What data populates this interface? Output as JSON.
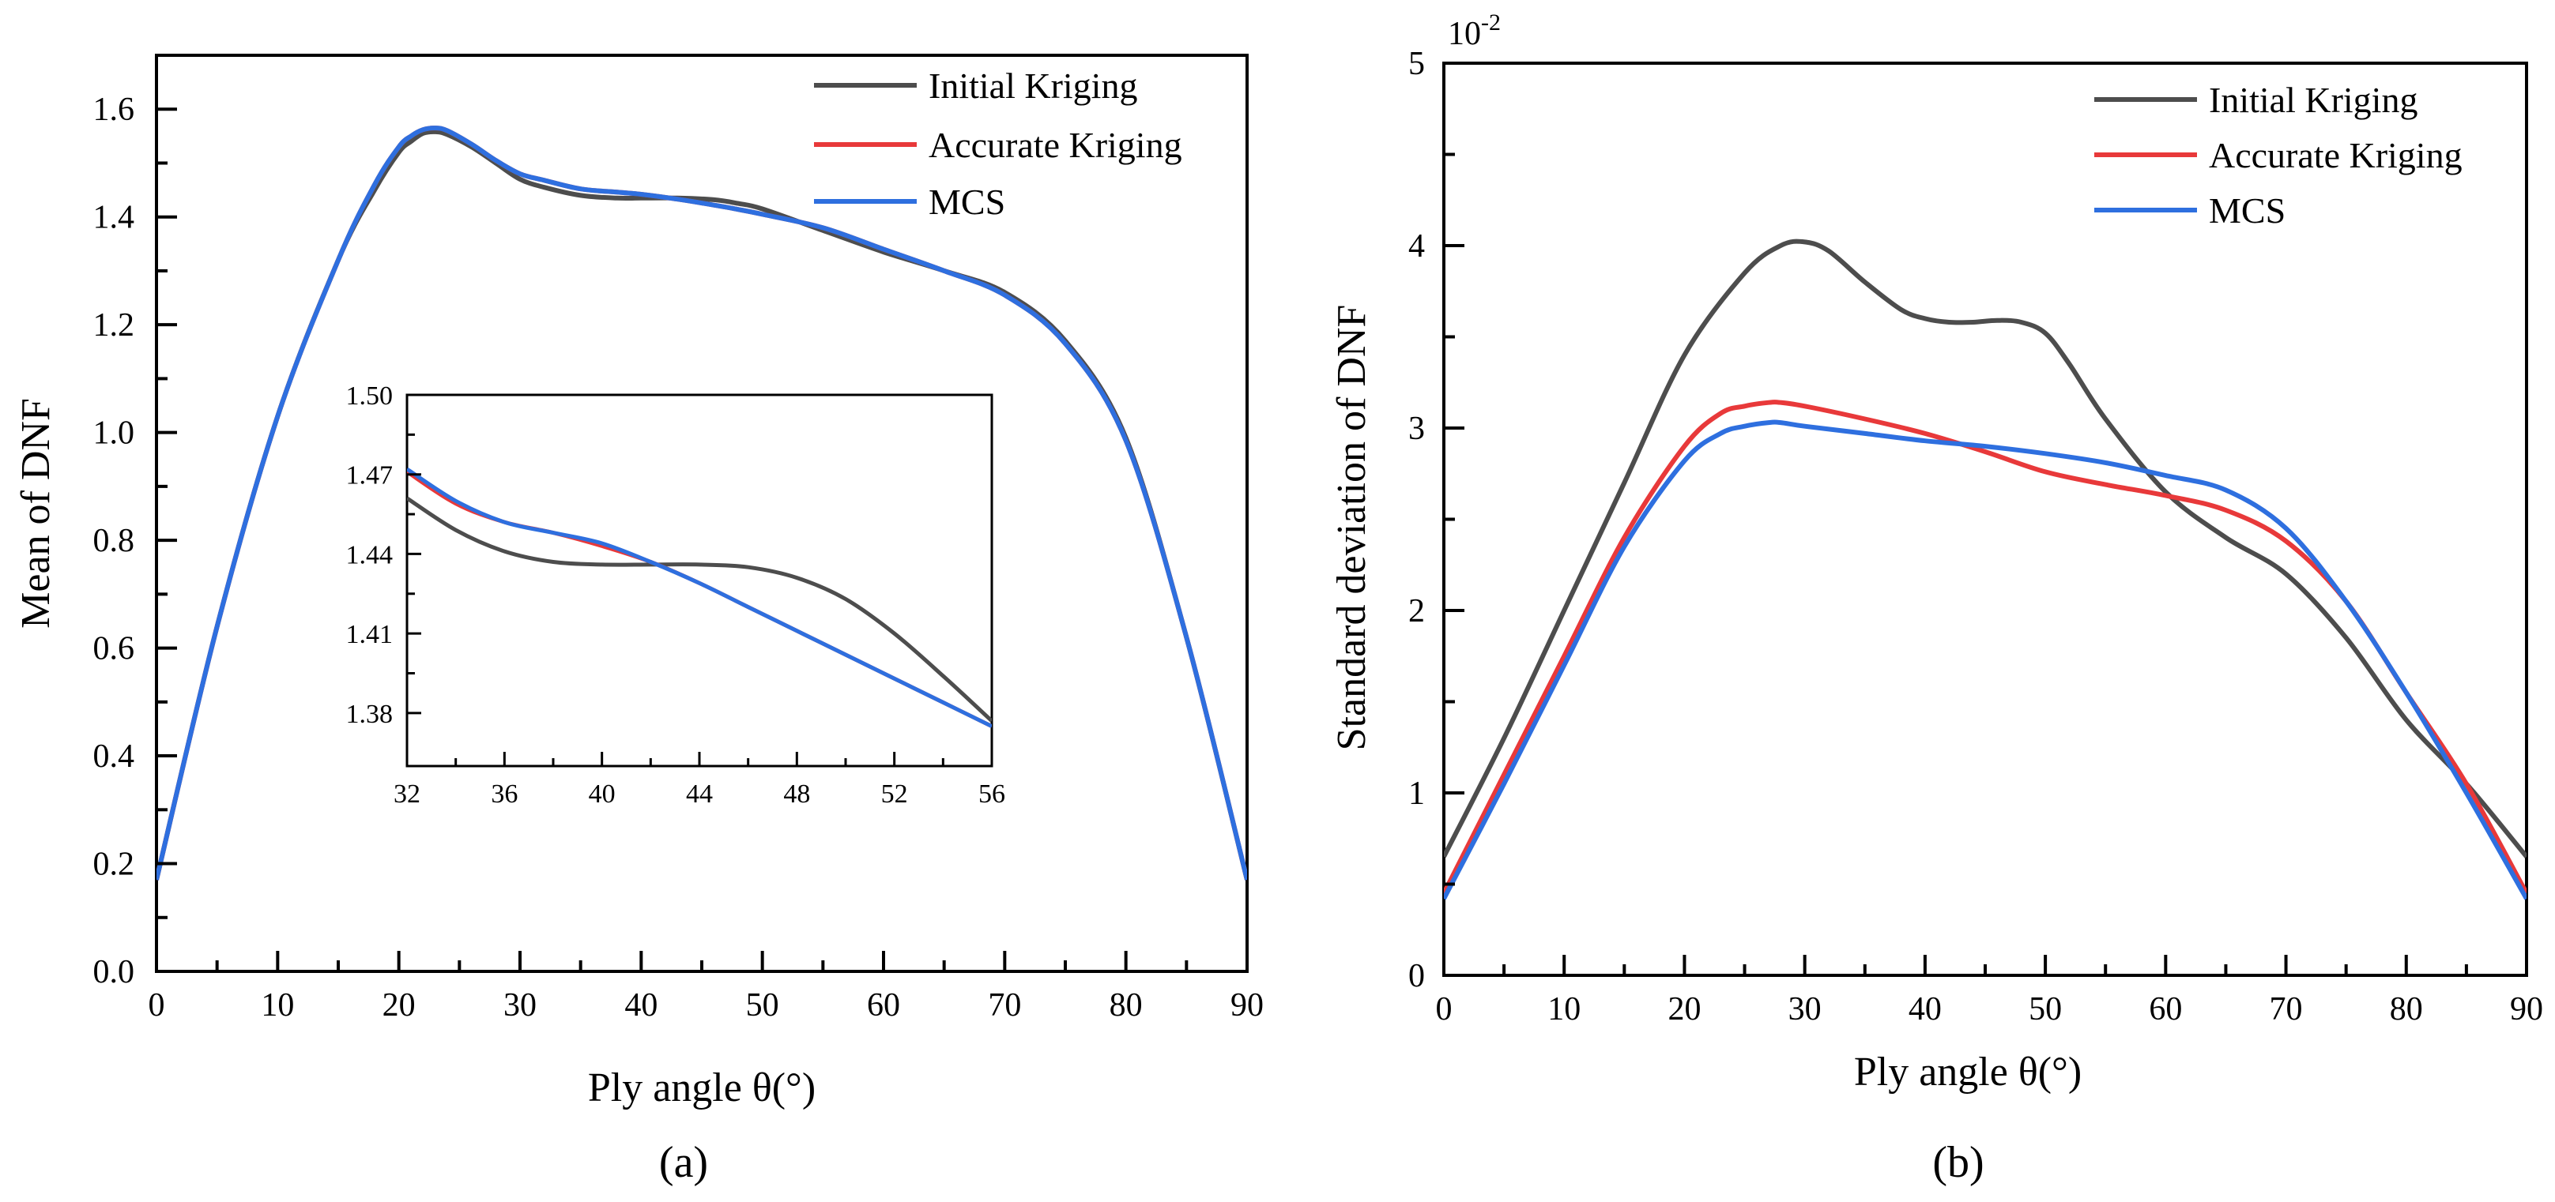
{
  "colors": {
    "initial_kriging": "#4d4d4d",
    "accurate_kriging": "#e8393a",
    "mcs": "#2e6fdf"
  },
  "chart_data": [
    {
      "type": "line",
      "id": "a",
      "caption": "(a)",
      "xlabel": "Ply angle θ(°)",
      "ylabel": "Mean of DNF",
      "xlim": [
        0,
        90
      ],
      "ylim": [
        0.0,
        1.7
      ],
      "xticks": [
        0,
        10,
        20,
        30,
        40,
        50,
        60,
        70,
        80,
        90
      ],
      "yticks": [
        0.0,
        0.2,
        0.4,
        0.6,
        0.8,
        1.0,
        1.2,
        1.4,
        1.6
      ],
      "ytick_labels": [
        "0.0",
        "0.2",
        "0.4",
        "0.6",
        "0.8",
        "1.0",
        "1.2",
        "1.4",
        "1.6"
      ],
      "legend_position": "top-right",
      "series": [
        {
          "name": "Initial Kriging",
          "color_key": "initial_kriging",
          "x": [
            0,
            5,
            10,
            15,
            18,
            20,
            21,
            22,
            23,
            24,
            26,
            28,
            30,
            32,
            35,
            38,
            40,
            43,
            46,
            48,
            50,
            55,
            60,
            65,
            70,
            75,
            80,
            85,
            90
          ],
          "y": [
            0.17,
            0.64,
            1.03,
            1.32,
            1.45,
            1.52,
            1.54,
            1.555,
            1.558,
            1.553,
            1.53,
            1.5,
            1.47,
            1.455,
            1.44,
            1.435,
            1.435,
            1.435,
            1.432,
            1.425,
            1.415,
            1.375,
            1.335,
            1.3,
            1.26,
            1.17,
            0.99,
            0.62,
            0.17
          ]
        },
        {
          "name": "Accurate Kriging",
          "color_key": "accurate_kriging",
          "x": [
            0,
            5,
            10,
            15,
            18,
            20,
            21,
            22,
            23,
            24,
            26,
            28,
            30,
            32,
            35,
            38,
            40,
            43,
            46,
            48,
            50,
            55,
            60,
            65,
            70,
            75,
            80,
            85,
            90
          ],
          "y": [
            0.17,
            0.64,
            1.03,
            1.32,
            1.46,
            1.53,
            1.55,
            1.562,
            1.565,
            1.56,
            1.535,
            1.505,
            1.48,
            1.468,
            1.452,
            1.446,
            1.442,
            1.433,
            1.422,
            1.414,
            1.405,
            1.38,
            1.34,
            1.3,
            1.255,
            1.165,
            0.985,
            0.62,
            0.17
          ]
        },
        {
          "name": "MCS",
          "color_key": "mcs",
          "x": [
            0,
            5,
            10,
            15,
            18,
            20,
            21,
            22,
            23,
            24,
            26,
            28,
            30,
            32,
            35,
            38,
            40,
            43,
            46,
            48,
            50,
            55,
            60,
            65,
            70,
            75,
            80,
            85,
            90
          ],
          "y": [
            0.17,
            0.64,
            1.03,
            1.32,
            1.46,
            1.53,
            1.55,
            1.562,
            1.565,
            1.56,
            1.535,
            1.505,
            1.48,
            1.468,
            1.452,
            1.446,
            1.442,
            1.433,
            1.422,
            1.414,
            1.405,
            1.38,
            1.34,
            1.3,
            1.255,
            1.165,
            0.985,
            0.62,
            0.17
          ]
        }
      ],
      "inset": {
        "xlim": [
          32,
          56
        ],
        "ylim": [
          1.36,
          1.5
        ],
        "xticks": [
          32,
          36,
          40,
          44,
          48,
          52,
          56
        ],
        "yticks": [
          1.38,
          1.41,
          1.44,
          1.47,
          1.5
        ],
        "ytick_labels": [
          "1.38",
          "1.41",
          "1.44",
          "1.47",
          "1.50"
        ],
        "series": [
          {
            "name": "Initial Kriging",
            "color_key": "initial_kriging",
            "x": [
              32,
              34,
              36,
              38,
              40,
              42,
              44,
              46,
              48,
              50,
              52,
              54,
              56
            ],
            "y": [
              1.461,
              1.449,
              1.441,
              1.437,
              1.436,
              1.436,
              1.436,
              1.435,
              1.431,
              1.423,
              1.41,
              1.394,
              1.377
            ]
          },
          {
            "name": "Accurate Kriging",
            "color_key": "accurate_kriging",
            "x": [
              32,
              34,
              36,
              38,
              40,
              42,
              44,
              46,
              48,
              50,
              52,
              54,
              56
            ],
            "y": [
              1.471,
              1.459,
              1.452,
              1.448,
              1.443,
              1.437,
              1.429,
              1.42,
              1.411,
              1.402,
              1.393,
              1.384,
              1.375
            ]
          },
          {
            "name": "MCS",
            "color_key": "mcs",
            "x": [
              32,
              34,
              36,
              38,
              40,
              42,
              44,
              46,
              48,
              50,
              52,
              54,
              56
            ],
            "y": [
              1.472,
              1.46,
              1.452,
              1.448,
              1.444,
              1.437,
              1.429,
              1.42,
              1.411,
              1.402,
              1.393,
              1.384,
              1.375
            ]
          }
        ]
      }
    },
    {
      "type": "line",
      "id": "b",
      "caption": "(b)",
      "xlabel": "Ply angle θ(°)",
      "ylabel": "Standard deviation of DNF",
      "multiplier_label": "10",
      "multiplier_exponent": "-2",
      "xlim": [
        0,
        90
      ],
      "ylim": [
        0,
        5
      ],
      "xticks": [
        0,
        10,
        20,
        30,
        40,
        50,
        60,
        70,
        80,
        90
      ],
      "yticks": [
        0,
        1,
        2,
        3,
        4,
        5
      ],
      "ytick_labels": [
        "0",
        "1",
        "2",
        "3",
        "4",
        "5"
      ],
      "legend_position": "top-right",
      "series": [
        {
          "name": "Initial Kriging",
          "color_key": "initial_kriging",
          "x": [
            0,
            5,
            10,
            15,
            20,
            25,
            28,
            30,
            32,
            35,
            38,
            40,
            42,
            44,
            46,
            48,
            50,
            52,
            55,
            60,
            65,
            70,
            75,
            80,
            85,
            90
          ],
          "y": [
            0.65,
            1.3,
            2.0,
            2.7,
            3.4,
            3.85,
            4.0,
            4.02,
            3.97,
            3.8,
            3.65,
            3.6,
            3.58,
            3.58,
            3.59,
            3.58,
            3.52,
            3.35,
            3.05,
            2.65,
            2.4,
            2.2,
            1.85,
            1.4,
            1.05,
            0.65
          ]
        },
        {
          "name": "Accurate Kriging",
          "color_key": "accurate_kriging",
          "x": [
            0,
            5,
            10,
            15,
            20,
            23,
            25,
            27,
            28,
            30,
            35,
            40,
            45,
            50,
            55,
            60,
            65,
            70,
            75,
            80,
            85,
            90
          ],
          "y": [
            0.45,
            1.1,
            1.75,
            2.4,
            2.9,
            3.08,
            3.12,
            3.14,
            3.14,
            3.12,
            3.05,
            2.97,
            2.87,
            2.76,
            2.69,
            2.63,
            2.55,
            2.38,
            2.05,
            1.55,
            1.05,
            0.45
          ]
        },
        {
          "name": "MCS",
          "color_key": "mcs",
          "x": [
            0,
            5,
            10,
            15,
            20,
            23,
            25,
            27,
            28,
            30,
            35,
            40,
            45,
            50,
            55,
            60,
            65,
            70,
            75,
            80,
            85,
            90
          ],
          "y": [
            0.42,
            1.05,
            1.7,
            2.35,
            2.82,
            2.97,
            3.01,
            3.03,
            3.03,
            3.01,
            2.97,
            2.93,
            2.9,
            2.86,
            2.81,
            2.74,
            2.66,
            2.45,
            2.05,
            1.55,
            1.0,
            0.42
          ]
        }
      ]
    }
  ]
}
